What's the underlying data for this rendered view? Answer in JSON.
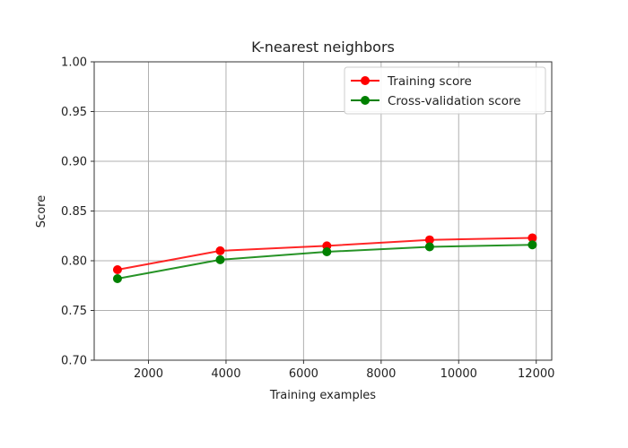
{
  "chart_data": {
    "type": "line",
    "title": "K-nearest neighbors",
    "xlabel": "Training examples",
    "ylabel": "Score",
    "xlim": [
      600,
      12400
    ],
    "ylim": [
      0.7,
      1.0
    ],
    "xticks": [
      2000,
      4000,
      6000,
      8000,
      10000,
      12000
    ],
    "yticks": [
      0.7,
      0.75,
      0.8,
      0.85,
      0.9,
      0.95,
      1.0
    ],
    "grid": true,
    "legend_position": "top-right",
    "x": [
      1200,
      3850,
      6600,
      9250,
      11900
    ],
    "series": [
      {
        "name": "Training score",
        "color": "#ff0000",
        "values": [
          0.791,
          0.81,
          0.815,
          0.821,
          0.823
        ]
      },
      {
        "name": "Cross-validation score",
        "color": "#008000",
        "values": [
          0.782,
          0.801,
          0.809,
          0.814,
          0.816
        ]
      }
    ]
  }
}
